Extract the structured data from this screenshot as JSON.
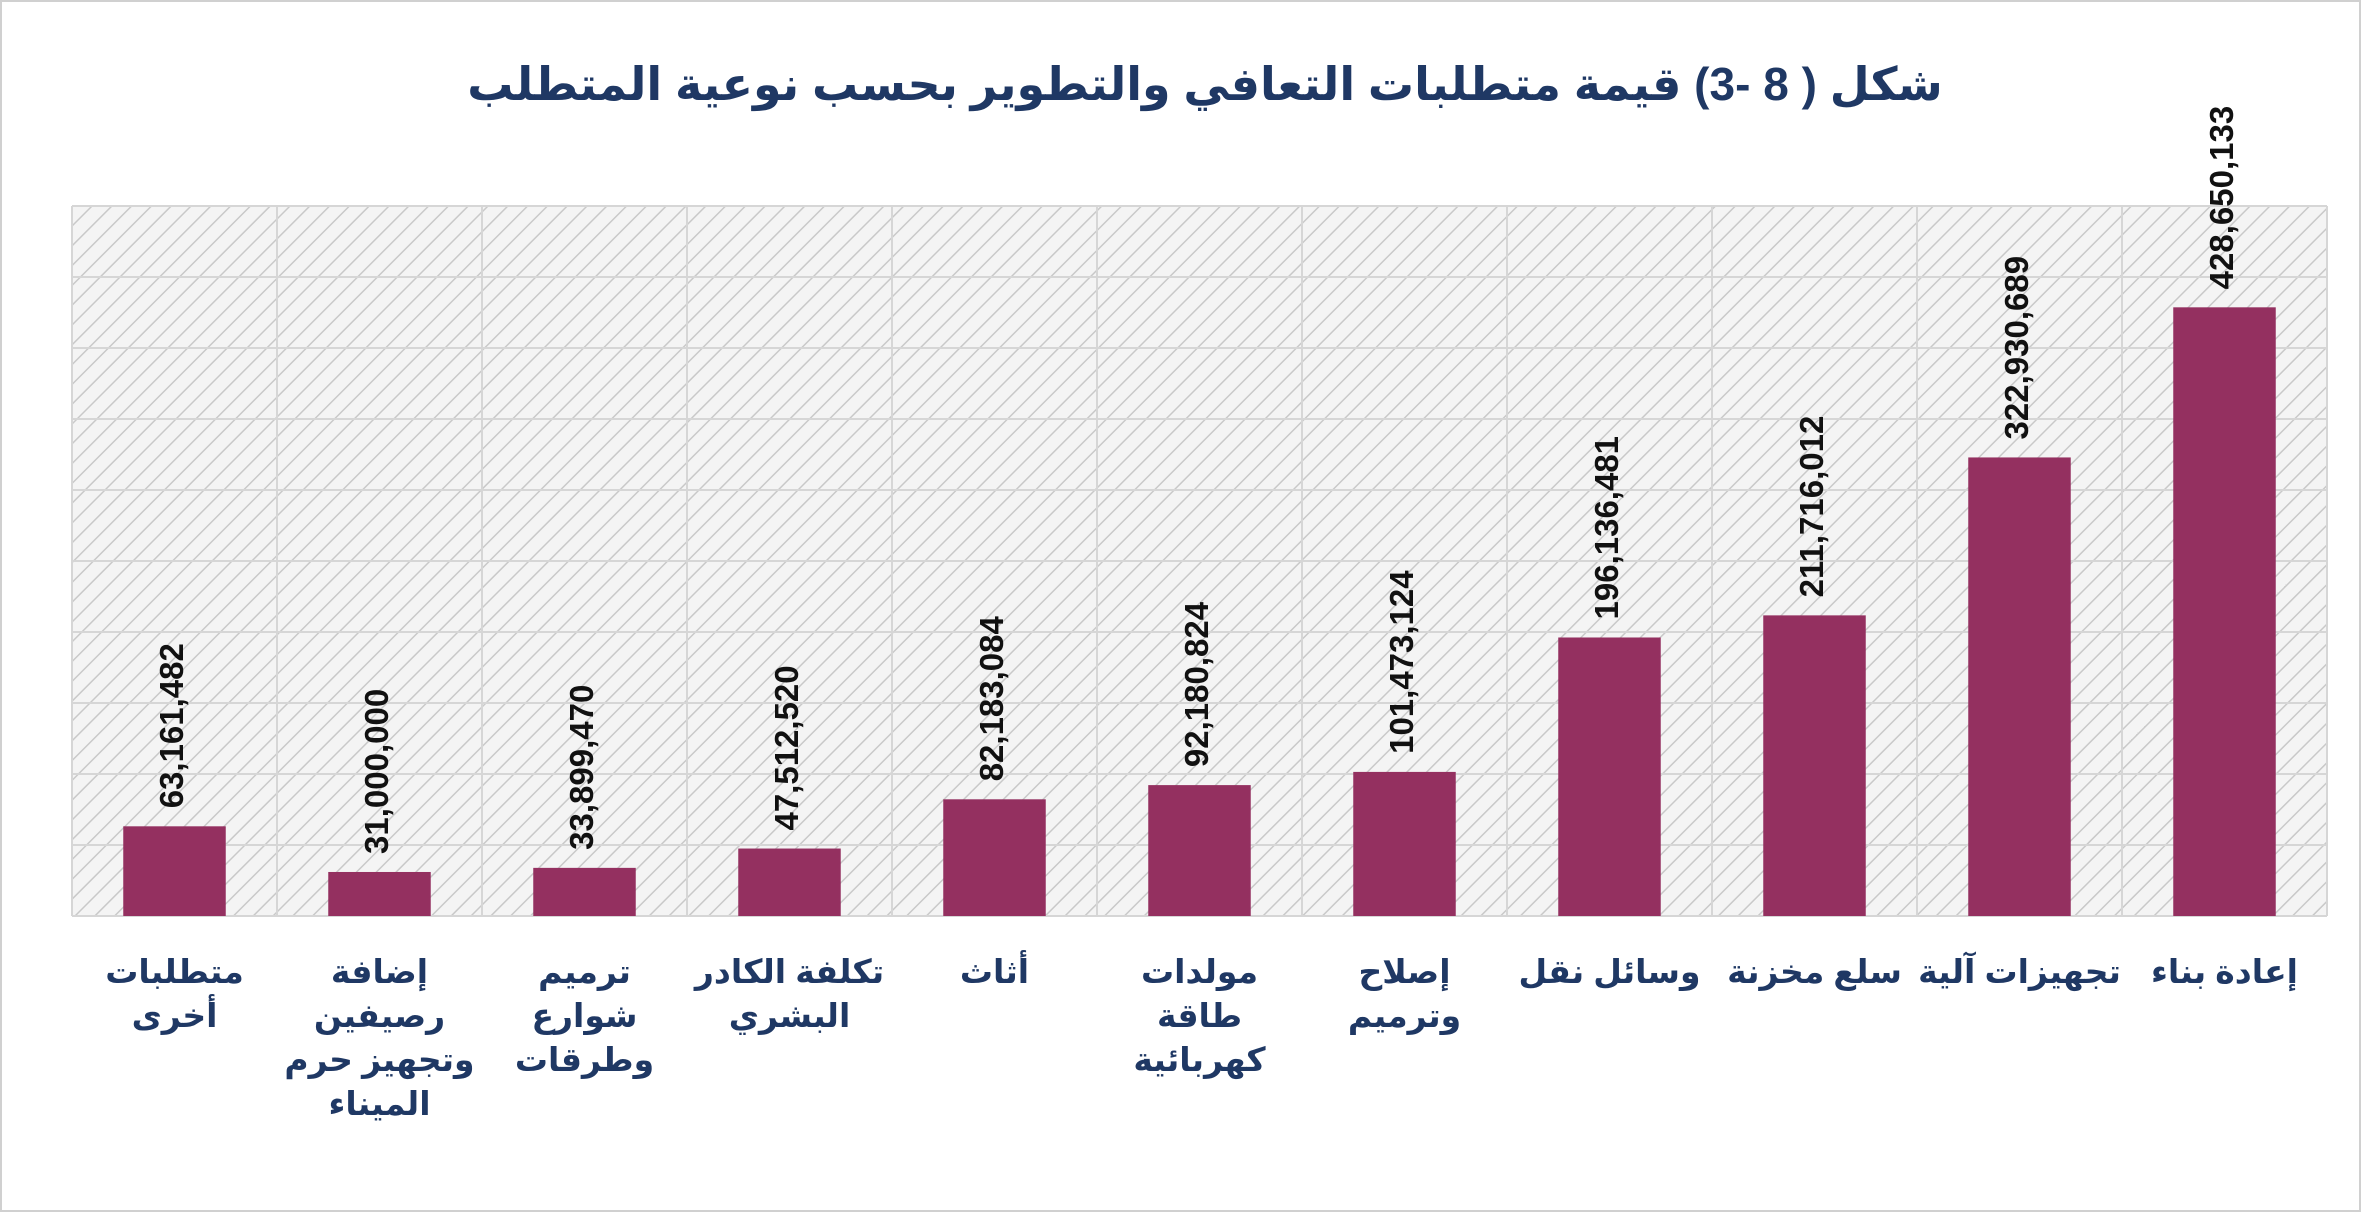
{
  "chart_data": {
    "type": "bar",
    "title": "شكل ( 8 -3) قيمة متطلبات التعافي والتطوير بحسب نوعية المتطلب",
    "categories": [
      "إعادة بناء",
      "تجهيزات آلية",
      "سلع مخزنة",
      "وسائل نقل",
      "إصلاح وترميم",
      "مولدات طاقة كهربائية",
      "أثاث",
      "تكلفة الكادر البشري",
      "ترميم شوارع وطرقات",
      "إضافة رصيفين وتجهيز حرم الميناء",
      "متطلبات أخرى"
    ],
    "values": [
      428650133,
      322930689,
      211716012,
      196136481,
      101473124,
      92180824,
      82183084,
      47512520,
      33899470,
      31000000,
      63161482
    ],
    "value_labels": [
      "428,650,133",
      "322,930,689",
      "211,716,012",
      "196,136,481",
      "101,473,124",
      "92,180,824",
      "82,183,084",
      "47,512,520",
      "33,899,470",
      "31,000,000",
      "63,161,482"
    ],
    "color": "#943060",
    "ylim": [
      0,
      500000000
    ],
    "grid": true
  }
}
